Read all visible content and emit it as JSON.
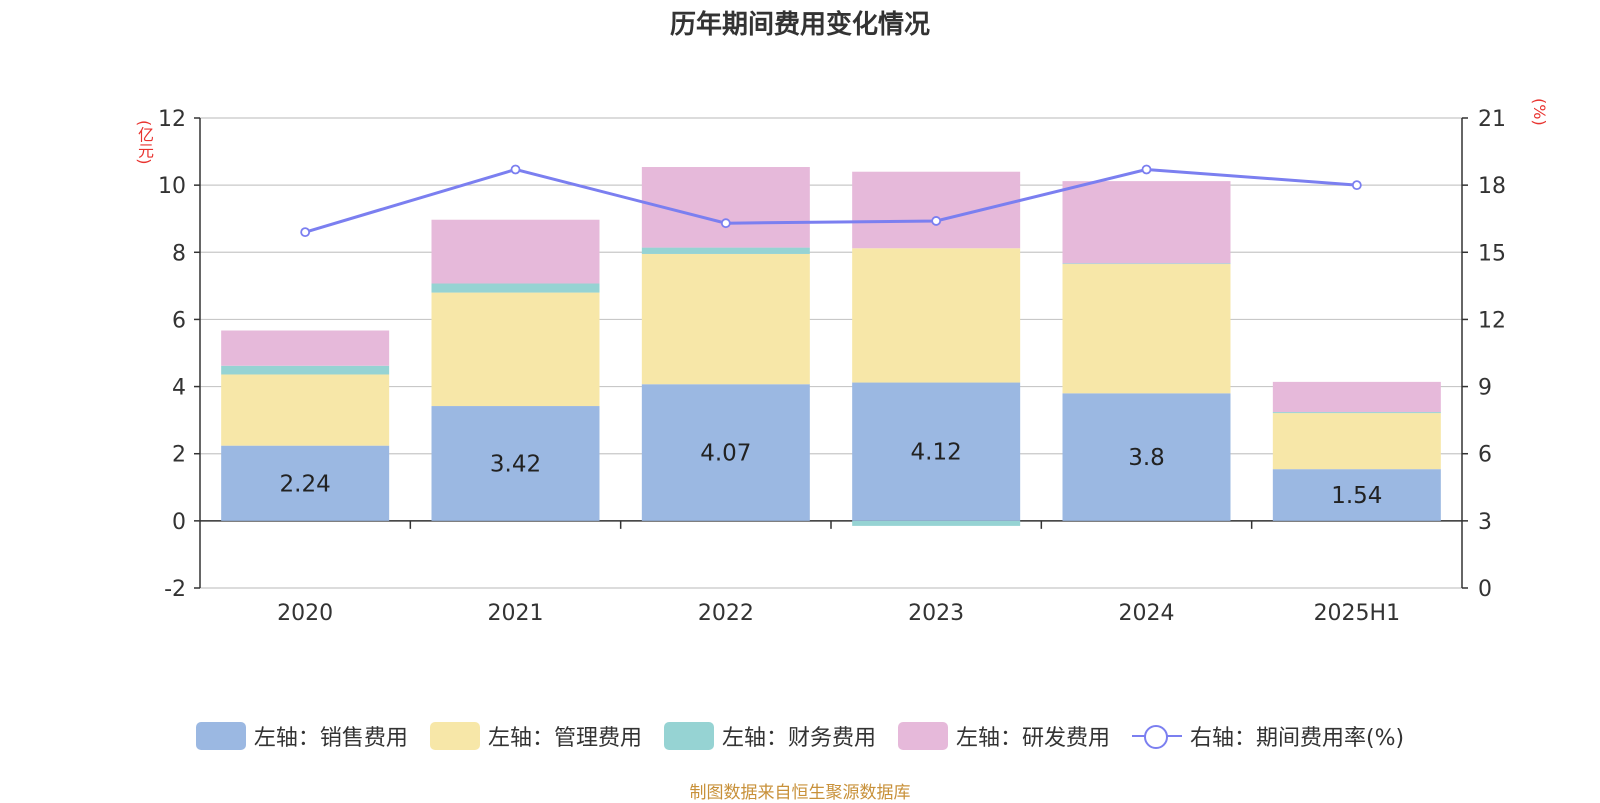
{
  "title": "历年期间费用变化情况",
  "source": "制图数据来自恒生聚源数据库",
  "chart_data": {
    "type": "bar",
    "stacked": true,
    "title": "历年期间费用变化情况",
    "categories": [
      "2020",
      "2021",
      "2022",
      "2023",
      "2024",
      "2025H1"
    ],
    "y_left": {
      "label": "(亿元)",
      "ylim": [
        -2,
        12
      ],
      "ticks": [
        -2,
        0,
        2,
        4,
        6,
        8,
        10,
        12
      ]
    },
    "y_right": {
      "label": "(%)",
      "ylim": [
        0,
        21
      ],
      "ticks": [
        0,
        3,
        6,
        9,
        12,
        15,
        18,
        21
      ]
    },
    "grid": true,
    "legend_position": "bottom",
    "series": [
      {
        "name": "左轴：销售费用",
        "axis": "left",
        "type": "bar",
        "color": "#9bb8e2",
        "values": [
          2.24,
          3.42,
          4.07,
          4.12,
          3.8,
          1.54
        ],
        "show_labels": true
      },
      {
        "name": "左轴：管理费用",
        "axis": "left",
        "type": "bar",
        "color": "#f7e7a8",
        "values": [
          2.12,
          3.38,
          3.88,
          4.0,
          3.85,
          1.67
        ]
      },
      {
        "name": "左轴：财务费用",
        "axis": "left",
        "type": "bar",
        "color": "#96d3d3",
        "values": [
          0.26,
          0.27,
          0.19,
          -0.15,
          0.02,
          0.03
        ]
      },
      {
        "name": "左轴：研发费用",
        "axis": "left",
        "type": "bar",
        "color": "#e6b9da",
        "values": [
          1.05,
          1.9,
          2.4,
          2.28,
          2.45,
          0.9
        ]
      },
      {
        "name": "右轴：期间费用率(%)",
        "axis": "right",
        "type": "line",
        "color": "#7b7ff0",
        "values": [
          15.9,
          18.7,
          16.3,
          16.4,
          18.7,
          18.0
        ]
      }
    ]
  }
}
